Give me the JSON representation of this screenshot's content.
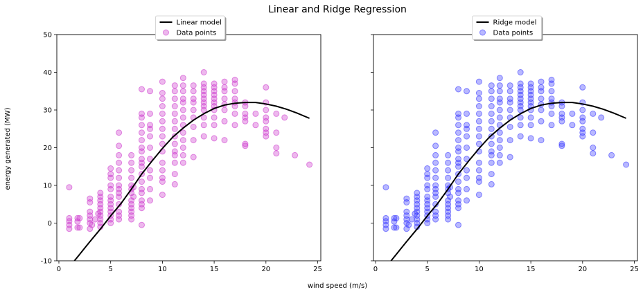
{
  "figure": {
    "suptitle": "Linear and Ridge Regression",
    "xlabel": "wind speed (m/s)",
    "ylabel": "energy generated (MW)"
  },
  "colors": {
    "linear_points": "#cc33cc",
    "ridge_points": "#3333ff",
    "model_line": "#000000"
  },
  "chart_data": [
    {
      "type": "scatter",
      "panel": "left",
      "xlim": [
        -0.2,
        25.3
      ],
      "ylim": [
        -10,
        50
      ],
      "xticks": [
        0,
        5,
        10,
        15,
        20,
        25
      ],
      "yticks": [
        -10,
        0,
        10,
        20,
        30,
        40,
        50
      ],
      "show_ytick_labels": true,
      "legend_position": "top-center",
      "legend": [
        "Linear model",
        "Data points"
      ],
      "series": [
        {
          "name": "Data points",
          "kind": "scatter",
          "color": "#cc33cc",
          "points": [
            [
              1,
              -1.5
            ],
            [
              1,
              -0.5
            ],
            [
              1,
              0.5
            ],
            [
              1,
              1.3
            ],
            [
              1,
              9.5
            ],
            [
              1.8,
              -1.2
            ],
            [
              1.8,
              0.4
            ],
            [
              1.8,
              1.3
            ],
            [
              2,
              1.3
            ],
            [
              2,
              -1.2
            ],
            [
              3,
              -1.5
            ],
            [
              3,
              0
            ],
            [
              3,
              1
            ],
            [
              3,
              2
            ],
            [
              3,
              3
            ],
            [
              3,
              5.5
            ],
            [
              3,
              6.5
            ],
            [
              3.2,
              -0.5
            ],
            [
              3.5,
              1
            ],
            [
              3.8,
              2.5
            ],
            [
              4,
              -1
            ],
            [
              4,
              0
            ],
            [
              4,
              1
            ],
            [
              4,
              2
            ],
            [
              4,
              3
            ],
            [
              4,
              4
            ],
            [
              4,
              5
            ],
            [
              4,
              6
            ],
            [
              4,
              7
            ],
            [
              4,
              8
            ],
            [
              5,
              0
            ],
            [
              5,
              1
            ],
            [
              5,
              2
            ],
            [
              5,
              3
            ],
            [
              5,
              4
            ],
            [
              5,
              5
            ],
            [
              5,
              6
            ],
            [
              5,
              7
            ],
            [
              5,
              9
            ],
            [
              5,
              10
            ],
            [
              5,
              12
            ],
            [
              5,
              13
            ],
            [
              5,
              14.5
            ],
            [
              5.8,
              1
            ],
            [
              5.8,
              2
            ],
            [
              5.8,
              3
            ],
            [
              5.8,
              5
            ],
            [
              5.8,
              7
            ],
            [
              5.8,
              8
            ],
            [
              5.8,
              9
            ],
            [
              5.8,
              10
            ],
            [
              5.8,
              12
            ],
            [
              5.8,
              14
            ],
            [
              5.8,
              16
            ],
            [
              5.8,
              18
            ],
            [
              5.8,
              20.5
            ],
            [
              5.8,
              24
            ],
            [
              7,
              1
            ],
            [
              7,
              2
            ],
            [
              7,
              3
            ],
            [
              7,
              4
            ],
            [
              7,
              5
            ],
            [
              7,
              6
            ],
            [
              7,
              8
            ],
            [
              7,
              9
            ],
            [
              7,
              10
            ],
            [
              7,
              12
            ],
            [
              7,
              14
            ],
            [
              7,
              16
            ],
            [
              7,
              18
            ],
            [
              7.2,
              7
            ],
            [
              7.2,
              9.5
            ],
            [
              8,
              -0.5
            ],
            [
              8,
              4
            ],
            [
              8,
              5
            ],
            [
              8,
              6
            ],
            [
              8,
              8
            ],
            [
              8,
              9
            ],
            [
              8,
              11
            ],
            [
              8,
              13
            ],
            [
              8,
              15
            ],
            [
              8,
              16
            ],
            [
              8,
              17
            ],
            [
              8,
              19
            ],
            [
              8,
              20
            ],
            [
              8,
              22
            ],
            [
              8,
              24
            ],
            [
              8,
              26
            ],
            [
              8,
              28
            ],
            [
              8,
              29
            ],
            [
              8,
              35.5
            ],
            [
              8.8,
              6
            ],
            [
              8.8,
              9
            ],
            [
              8.8,
              12
            ],
            [
              8.8,
              14
            ],
            [
              8.8,
              17
            ],
            [
              8.8,
              20
            ],
            [
              8.8,
              23
            ],
            [
              8.8,
              25
            ],
            [
              8.8,
              26
            ],
            [
              8.8,
              29
            ],
            [
              8.8,
              35
            ],
            [
              10,
              7.5
            ],
            [
              10,
              11
            ],
            [
              10,
              12
            ],
            [
              10,
              14
            ],
            [
              10,
              16
            ],
            [
              10,
              19
            ],
            [
              10,
              21
            ],
            [
              10,
              23
            ],
            [
              10,
              25
            ],
            [
              10,
              27
            ],
            [
              10,
              29
            ],
            [
              10,
              31
            ],
            [
              10,
              33
            ],
            [
              10,
              34.5
            ],
            [
              10,
              37.5
            ],
            [
              11.2,
              10.3
            ],
            [
              11.2,
              13
            ],
            [
              11.2,
              16
            ],
            [
              11.2,
              18
            ],
            [
              11.2,
              19
            ],
            [
              11.2,
              21
            ],
            [
              11.2,
              23
            ],
            [
              11.2,
              25
            ],
            [
              11.2,
              27
            ],
            [
              11.2,
              29
            ],
            [
              11.2,
              31
            ],
            [
              11.2,
              33
            ],
            [
              11.2,
              35
            ],
            [
              11.2,
              36.5
            ],
            [
              12,
              16
            ],
            [
              12,
              18
            ],
            [
              12,
              20
            ],
            [
              12,
              22
            ],
            [
              12,
              24
            ],
            [
              12,
              26
            ],
            [
              12,
              28
            ],
            [
              12,
              30
            ],
            [
              12,
              32
            ],
            [
              12,
              33
            ],
            [
              12,
              35
            ],
            [
              12,
              36.5
            ],
            [
              12,
              38.5
            ],
            [
              13,
              17.5
            ],
            [
              13,
              22
            ],
            [
              13,
              25.5
            ],
            [
              13,
              28
            ],
            [
              13,
              30
            ],
            [
              13,
              32
            ],
            [
              13,
              33
            ],
            [
              13,
              35
            ],
            [
              13,
              36.5
            ],
            [
              14,
              23
            ],
            [
              14,
              26
            ],
            [
              14,
              28
            ],
            [
              14,
              30
            ],
            [
              14,
              31
            ],
            [
              14,
              32
            ],
            [
              14,
              33
            ],
            [
              14,
              34
            ],
            [
              14,
              35
            ],
            [
              14,
              36
            ],
            [
              14,
              37
            ],
            [
              14,
              40
            ],
            [
              15,
              22.5
            ],
            [
              15,
              26
            ],
            [
              15,
              28
            ],
            [
              15,
              30
            ],
            [
              15,
              31
            ],
            [
              15,
              32
            ],
            [
              15,
              33
            ],
            [
              15,
              34
            ],
            [
              15,
              35
            ],
            [
              15,
              36
            ],
            [
              15,
              37
            ],
            [
              16,
              22
            ],
            [
              16,
              27
            ],
            [
              16,
              30
            ],
            [
              16,
              31.5
            ],
            [
              16,
              33
            ],
            [
              16,
              35
            ],
            [
              16,
              36
            ],
            [
              16,
              37.5
            ],
            [
              17,
              26
            ],
            [
              17,
              29
            ],
            [
              17,
              31
            ],
            [
              17,
              32
            ],
            [
              17,
              33
            ],
            [
              17,
              35
            ],
            [
              17,
              37
            ],
            [
              17,
              38
            ],
            [
              18,
              20.5
            ],
            [
              18,
              21
            ],
            [
              18,
              27
            ],
            [
              18,
              28
            ],
            [
              18,
              29
            ],
            [
              18,
              31
            ],
            [
              18,
              32
            ],
            [
              19,
              26
            ],
            [
              19,
              29
            ],
            [
              20,
              23
            ],
            [
              20,
              24
            ],
            [
              20,
              25
            ],
            [
              20,
              27
            ],
            [
              20,
              28
            ],
            [
              20,
              30
            ],
            [
              20,
              32
            ],
            [
              20,
              36
            ],
            [
              21,
              18.5
            ],
            [
              21,
              20
            ],
            [
              21,
              24
            ],
            [
              21,
              29
            ],
            [
              21.8,
              28
            ],
            [
              22.8,
              18
            ],
            [
              24.2,
              15.5
            ]
          ]
        },
        {
          "name": "Linear model",
          "kind": "line",
          "color": "#000000",
          "x": [
            1.5,
            2,
            2.5,
            3,
            4,
            5,
            6,
            7,
            8,
            9,
            10,
            11,
            12,
            13,
            14,
            15,
            16,
            17,
            18,
            19,
            20,
            21,
            22,
            23,
            24.2
          ],
          "y": [
            -10,
            -8.3,
            -6.6,
            -4.9,
            -1.6,
            1.9,
            5.2,
            9,
            13,
            16.5,
            19.8,
            22.8,
            25.2,
            27.3,
            29,
            30.4,
            31.3,
            31.8,
            32,
            32,
            31.6,
            31,
            30.2,
            29.2,
            27.8
          ]
        }
      ]
    },
    {
      "type": "scatter",
      "panel": "right",
      "xlim": [
        -0.2,
        25.3
      ],
      "ylim": [
        -10,
        50
      ],
      "xticks": [
        0,
        5,
        10,
        15,
        20,
        25
      ],
      "yticks": [
        -10,
        0,
        10,
        20,
        30,
        40,
        50
      ],
      "show_ytick_labels": false,
      "legend_position": "top-center",
      "legend": [
        "Ridge model",
        "Data points"
      ],
      "series": [
        {
          "name": "Data points",
          "kind": "scatter",
          "color": "#3333ff",
          "points": "same_as_left"
        },
        {
          "name": "Ridge model",
          "kind": "line",
          "color": "#000000",
          "x": [
            1.5,
            2,
            2.5,
            3,
            4,
            5,
            6,
            7,
            8,
            9,
            10,
            11,
            12,
            13,
            14,
            15,
            16,
            17,
            18,
            19,
            20,
            21,
            22,
            23,
            24.2
          ],
          "y": [
            -10,
            -8.3,
            -6.6,
            -4.9,
            -1.6,
            1.9,
            5.2,
            9,
            13,
            16.5,
            19.8,
            22.8,
            25.2,
            27.3,
            29,
            30.4,
            31.3,
            31.8,
            32,
            32,
            31.6,
            31,
            30.2,
            29.2,
            27.8
          ]
        }
      ]
    }
  ]
}
